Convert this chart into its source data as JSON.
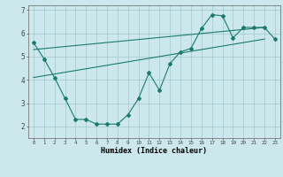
{
  "xlabel": "Humidex (Indice chaleur)",
  "background_color": "#cce8ec",
  "grid_color": "#a0c8cc",
  "line_color": "#1a7a6e",
  "xlim": [
    -0.5,
    23.5
  ],
  "ylim": [
    1.5,
    7.2
  ],
  "xticks": [
    0,
    1,
    2,
    3,
    4,
    5,
    6,
    7,
    8,
    9,
    10,
    11,
    12,
    13,
    14,
    15,
    16,
    17,
    18,
    19,
    20,
    21,
    22,
    23
  ],
  "yticks": [
    2,
    3,
    4,
    5,
    6,
    7
  ],
  "line1_x": [
    0,
    1,
    2,
    3,
    4,
    5,
    6,
    7,
    8,
    9,
    10,
    11,
    12,
    13,
    14,
    15,
    16,
    17,
    18,
    19,
    20,
    21,
    22,
    23
  ],
  "line1_y": [
    5.6,
    4.9,
    4.1,
    3.2,
    2.3,
    2.3,
    2.1,
    2.1,
    2.1,
    2.5,
    3.2,
    4.3,
    3.55,
    4.7,
    5.2,
    5.35,
    6.2,
    6.8,
    6.75,
    5.8,
    6.25,
    6.25,
    6.25,
    5.75
  ],
  "line2_x": [
    0,
    22
  ],
  "line2_y": [
    5.3,
    6.25
  ],
  "line3_x": [
    0,
    22
  ],
  "line3_y": [
    4.1,
    5.75
  ]
}
